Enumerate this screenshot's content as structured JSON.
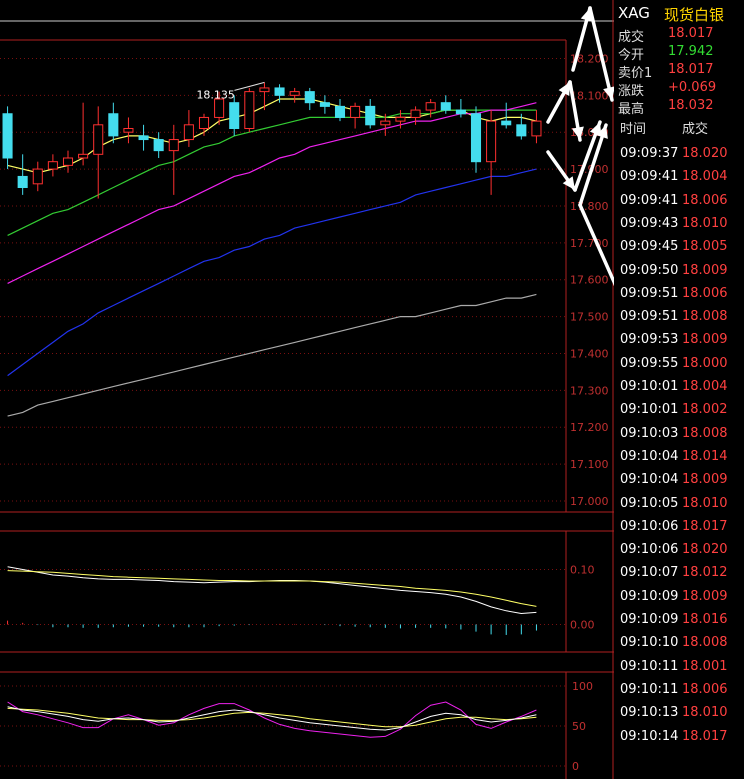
{
  "instrument": {
    "symbol": "XAG",
    "name": "现货白银"
  },
  "quote": [
    {
      "label": "成交",
      "value": "18.017",
      "color": "#ff4040"
    },
    {
      "label": "今开",
      "value": "17.942",
      "color": "#33dd33"
    },
    {
      "label": "卖价1",
      "value": "18.017",
      "color": "#ff4040"
    },
    {
      "label": "涨跌",
      "value": "+0.069",
      "color": "#ff4040"
    },
    {
      "label": "最高",
      "value": "18.032",
      "color": "#ff4040"
    }
  ],
  "ticks_header": {
    "time": "时间",
    "price": "成交"
  },
  "ticks": [
    {
      "time": "09:09:37",
      "price": "18.020"
    },
    {
      "time": "09:09:41",
      "price": "18.004"
    },
    {
      "time": "09:09:41",
      "price": "18.006"
    },
    {
      "time": "09:09:43",
      "price": "18.010"
    },
    {
      "time": "09:09:45",
      "price": "18.005"
    },
    {
      "time": "09:09:50",
      "price": "18.009"
    },
    {
      "time": "09:09:51",
      "price": "18.006"
    },
    {
      "time": "09:09:51",
      "price": "18.008"
    },
    {
      "time": "09:09:53",
      "price": "18.009"
    },
    {
      "time": "09:09:55",
      "price": "18.000"
    },
    {
      "time": "09:10:01",
      "price": "18.004"
    },
    {
      "time": "09:10:01",
      "price": "18.002"
    },
    {
      "time": "09:10:03",
      "price": "18.008"
    },
    {
      "time": "09:10:04",
      "price": "18.014"
    },
    {
      "time": "09:10:04",
      "price": "18.009"
    },
    {
      "time": "09:10:05",
      "price": "18.010"
    },
    {
      "time": "09:10:06",
      "price": "18.017"
    },
    {
      "time": "09:10:06",
      "price": "18.020"
    },
    {
      "time": "09:10:07",
      "price": "18.012"
    },
    {
      "time": "09:10:09",
      "price": "18.009"
    },
    {
      "time": "09:10:09",
      "price": "18.016"
    },
    {
      "time": "09:10:10",
      "price": "18.008"
    },
    {
      "time": "09:10:11",
      "price": "18.001"
    },
    {
      "time": "09:10:11",
      "price": "18.006"
    },
    {
      "time": "09:10:13",
      "price": "18.010"
    },
    {
      "time": "09:10:14",
      "price": "18.017"
    }
  ],
  "chart_data": {
    "type": "candlestick",
    "price_axis": {
      "ylim": [
        16.97,
        18.25
      ],
      "ticks": [
        "18.200",
        "18.100",
        "18.000",
        "17.900",
        "17.800",
        "17.700",
        "17.600",
        "17.500",
        "17.400",
        "17.300",
        "17.200",
        "17.100",
        "17.000"
      ]
    },
    "annotation": "18.135",
    "candles": [
      {
        "o": 18.05,
        "h": 18.07,
        "l": 17.9,
        "c": 17.93
      },
      {
        "o": 17.88,
        "h": 17.94,
        "l": 17.83,
        "c": 17.85
      },
      {
        "o": 17.86,
        "h": 17.92,
        "l": 17.84,
        "c": 17.9
      },
      {
        "o": 17.9,
        "h": 17.94,
        "l": 17.88,
        "c": 17.92
      },
      {
        "o": 17.91,
        "h": 17.95,
        "l": 17.89,
        "c": 17.93
      },
      {
        "o": 17.93,
        "h": 18.08,
        "l": 17.91,
        "c": 17.94
      },
      {
        "o": 17.94,
        "h": 18.07,
        "l": 17.82,
        "c": 18.02
      },
      {
        "o": 18.05,
        "h": 18.08,
        "l": 17.97,
        "c": 17.99
      },
      {
        "o": 18.0,
        "h": 18.04,
        "l": 17.97,
        "c": 18.01
      },
      {
        "o": 17.99,
        "h": 18.02,
        "l": 17.95,
        "c": 17.98
      },
      {
        "o": 17.98,
        "h": 18.0,
        "l": 17.93,
        "c": 17.95
      },
      {
        "o": 17.95,
        "h": 18.02,
        "l": 17.83,
        "c": 17.98
      },
      {
        "o": 17.98,
        "h": 18.06,
        "l": 17.96,
        "c": 18.02
      },
      {
        "o": 18.01,
        "h": 18.05,
        "l": 17.99,
        "c": 18.04
      },
      {
        "o": 18.04,
        "h": 18.11,
        "l": 18.02,
        "c": 18.09
      },
      {
        "o": 18.08,
        "h": 18.1,
        "l": 17.99,
        "c": 18.01
      },
      {
        "o": 18.01,
        "h": 18.12,
        "l": 18.0,
        "c": 18.11
      },
      {
        "o": 18.11,
        "h": 18.135,
        "l": 18.06,
        "c": 18.12
      },
      {
        "o": 18.12,
        "h": 18.13,
        "l": 18.08,
        "c": 18.1
      },
      {
        "o": 18.1,
        "h": 18.12,
        "l": 18.08,
        "c": 18.11
      },
      {
        "o": 18.11,
        "h": 18.12,
        "l": 18.06,
        "c": 18.08
      },
      {
        "o": 18.08,
        "h": 18.1,
        "l": 18.05,
        "c": 18.07
      },
      {
        "o": 18.07,
        "h": 18.09,
        "l": 18.03,
        "c": 18.04
      },
      {
        "o": 18.04,
        "h": 18.08,
        "l": 18.01,
        "c": 18.07
      },
      {
        "o": 18.07,
        "h": 18.09,
        "l": 18.01,
        "c": 18.02
      },
      {
        "o": 18.02,
        "h": 18.05,
        "l": 17.99,
        "c": 18.03
      },
      {
        "o": 18.03,
        "h": 18.06,
        "l": 18.01,
        "c": 18.04
      },
      {
        "o": 18.04,
        "h": 18.07,
        "l": 18.02,
        "c": 18.06
      },
      {
        "o": 18.06,
        "h": 18.09,
        "l": 18.04,
        "c": 18.08
      },
      {
        "o": 18.08,
        "h": 18.1,
        "l": 18.05,
        "c": 18.06
      },
      {
        "o": 18.06,
        "h": 18.09,
        "l": 18.04,
        "c": 18.05
      },
      {
        "o": 18.05,
        "h": 18.07,
        "l": 17.89,
        "c": 17.92
      },
      {
        "o": 17.92,
        "h": 18.06,
        "l": 17.83,
        "c": 18.03
      },
      {
        "o": 18.03,
        "h": 18.08,
        "l": 18.01,
        "c": 18.02
      },
      {
        "o": 18.02,
        "h": 18.05,
        "l": 17.98,
        "c": 17.99
      },
      {
        "o": 17.99,
        "h": 18.06,
        "l": 17.97,
        "c": 18.03
      }
    ],
    "ma_lines": [
      {
        "color": "#ffff66",
        "values": [
          17.91,
          17.9,
          17.89,
          17.9,
          17.91,
          17.93,
          17.96,
          17.98,
          17.99,
          17.99,
          17.98,
          17.97,
          17.98,
          18.0,
          18.03,
          18.04,
          18.05,
          18.07,
          18.09,
          18.09,
          18.09,
          18.08,
          18.07,
          18.06,
          18.05,
          18.04,
          18.04,
          18.04,
          18.05,
          18.06,
          18.06,
          18.04,
          18.03,
          18.04,
          18.04,
          18.03
        ]
      },
      {
        "color": "#33cc33",
        "values": [
          17.72,
          17.74,
          17.76,
          17.78,
          17.79,
          17.81,
          17.83,
          17.85,
          17.87,
          17.89,
          17.91,
          17.92,
          17.94,
          17.96,
          17.97,
          17.99,
          18.0,
          18.01,
          18.02,
          18.03,
          18.04,
          18.04,
          18.04,
          18.04,
          18.04,
          18.04,
          18.05,
          18.05,
          18.05,
          18.06,
          18.06,
          18.06,
          18.06,
          18.06,
          18.06,
          18.06
        ]
      },
      {
        "color": "#ee22ee",
        "values": [
          17.59,
          17.61,
          17.63,
          17.65,
          17.67,
          17.69,
          17.71,
          17.73,
          17.75,
          17.77,
          17.79,
          17.8,
          17.82,
          17.84,
          17.86,
          17.88,
          17.89,
          17.91,
          17.93,
          17.94,
          17.96,
          17.97,
          17.98,
          17.99,
          18.0,
          18.01,
          18.02,
          18.03,
          18.03,
          18.04,
          18.05,
          18.05,
          18.06,
          18.06,
          18.07,
          18.08
        ]
      },
      {
        "color": "#2233ee",
        "values": [
          17.34,
          17.37,
          17.4,
          17.43,
          17.46,
          17.48,
          17.51,
          17.53,
          17.55,
          17.57,
          17.59,
          17.61,
          17.63,
          17.65,
          17.66,
          17.68,
          17.69,
          17.71,
          17.72,
          17.74,
          17.75,
          17.76,
          17.77,
          17.78,
          17.79,
          17.8,
          17.81,
          17.83,
          17.84,
          17.85,
          17.86,
          17.87,
          17.88,
          17.88,
          17.89,
          17.9
        ]
      },
      {
        "color": "#aaaaaa",
        "values": [
          17.23,
          17.24,
          17.26,
          17.27,
          17.28,
          17.29,
          17.3,
          17.31,
          17.32,
          17.33,
          17.34,
          17.35,
          17.36,
          17.37,
          17.38,
          17.39,
          17.4,
          17.41,
          17.42,
          17.43,
          17.44,
          17.45,
          17.46,
          17.47,
          17.48,
          17.49,
          17.5,
          17.5,
          17.51,
          17.52,
          17.53,
          17.53,
          17.54,
          17.55,
          17.55,
          17.56
        ]
      }
    ],
    "macd": {
      "ylim": [
        -0.05,
        0.17
      ],
      "ticks": [
        "0.10",
        "0.00"
      ],
      "dif": [
        0.105,
        0.1,
        0.095,
        0.09,
        0.088,
        0.085,
        0.083,
        0.082,
        0.082,
        0.081,
        0.08,
        0.078,
        0.077,
        0.076,
        0.077,
        0.078,
        0.078,
        0.079,
        0.08,
        0.08,
        0.079,
        0.077,
        0.074,
        0.071,
        0.068,
        0.065,
        0.062,
        0.06,
        0.058,
        0.055,
        0.05,
        0.042,
        0.032,
        0.025,
        0.02,
        0.022
      ],
      "dea": [
        0.098,
        0.097,
        0.096,
        0.095,
        0.093,
        0.091,
        0.089,
        0.087,
        0.086,
        0.085,
        0.084,
        0.083,
        0.082,
        0.081,
        0.08,
        0.08,
        0.079,
        0.079,
        0.079,
        0.079,
        0.079,
        0.078,
        0.077,
        0.075,
        0.073,
        0.071,
        0.069,
        0.066,
        0.064,
        0.062,
        0.059,
        0.055,
        0.05,
        0.044,
        0.038,
        0.033
      ],
      "hist": [
        0.007,
        0.003,
        -0.001,
        -0.005,
        -0.005,
        -0.006,
        -0.006,
        -0.005,
        -0.004,
        -0.004,
        -0.004,
        -0.005,
        -0.005,
        -0.005,
        -0.003,
        -0.002,
        -0.001,
        0.0,
        0.001,
        0.001,
        0.0,
        -0.001,
        -0.003,
        -0.004,
        -0.005,
        -0.006,
        -0.007,
        -0.006,
        -0.006,
        -0.007,
        -0.009,
        -0.013,
        -0.018,
        -0.019,
        -0.018,
        -0.011
      ]
    },
    "kdj": {
      "ylim": [
        0,
        100
      ],
      "ticks": [
        "100",
        "50",
        "0"
      ],
      "k": [
        74,
        70,
        68,
        65,
        62,
        58,
        56,
        59,
        60,
        58,
        55,
        56,
        60,
        64,
        68,
        70,
        68,
        64,
        60,
        57,
        54,
        52,
        50,
        48,
        46,
        45,
        48,
        55,
        62,
        66,
        64,
        58,
        55,
        57,
        60,
        64
      ],
      "d": [
        72,
        71,
        70,
        68,
        66,
        63,
        60,
        59,
        58,
        58,
        57,
        57,
        58,
        60,
        63,
        66,
        67,
        66,
        64,
        62,
        59,
        57,
        55,
        53,
        51,
        49,
        49,
        51,
        55,
        59,
        61,
        61,
        59,
        58,
        59,
        61
      ],
      "j": [
        80,
        68,
        64,
        59,
        54,
        48,
        48,
        59,
        64,
        58,
        51,
        54,
        64,
        72,
        78,
        78,
        70,
        60,
        52,
        47,
        44,
        42,
        40,
        38,
        36,
        37,
        46,
        63,
        76,
        80,
        70,
        52,
        47,
        55,
        62,
        70
      ]
    }
  }
}
